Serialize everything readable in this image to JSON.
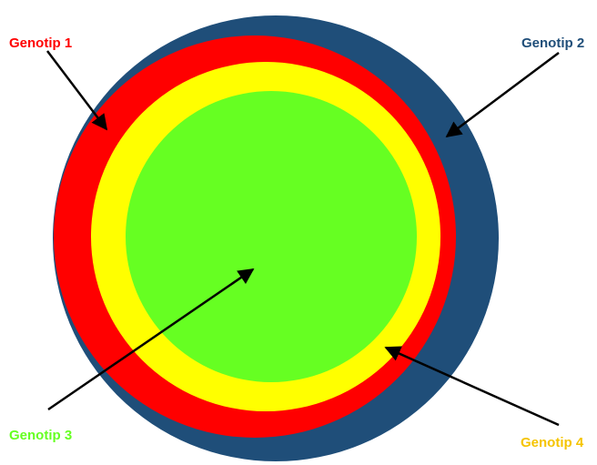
{
  "diagram": {
    "labels": {
      "genotip1": "Genotip 1",
      "genotip2": "Genotip 2",
      "genotip3": "Genotip 3",
      "genotip4": "Genotip 4"
    },
    "colors": {
      "genotip1": "#ff0000",
      "genotip2": "#1f4e79",
      "genotip3": "#66ff22",
      "genotip4": "#ffd700",
      "label_genotip2": "#1f4e79",
      "label_genotip3": "#66ff22",
      "label_genotip4": "#f5c400",
      "inner_yellow": "#ffff00",
      "arrow": "#000000"
    }
  }
}
